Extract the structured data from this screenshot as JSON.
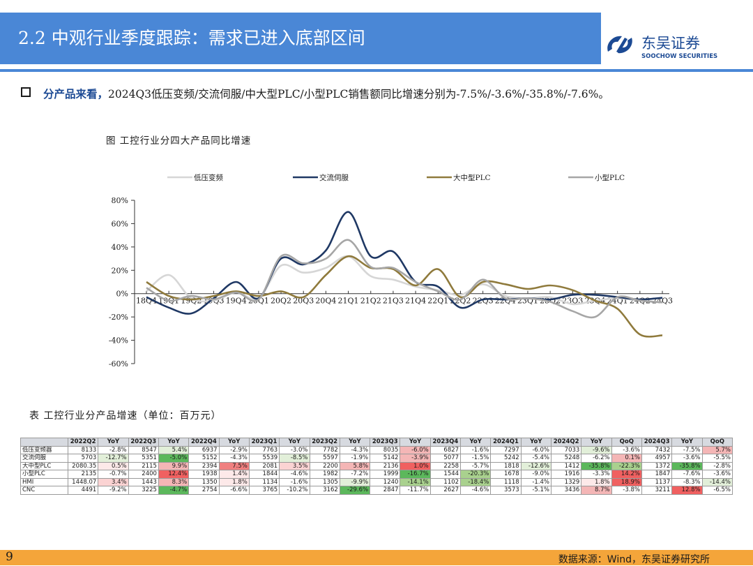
{
  "header": {
    "title": "2.2 中观行业季度跟踪：需求已进入底部区间",
    "logo_cn": "东吴证券",
    "logo_en": "SOOCHOW SECURITIES"
  },
  "bullet": {
    "lead": "分产品来看，",
    "text": "2024Q3低压变频/交流伺服/中大型PLC/小型PLC销售额同比增速分别为-7.5%/-3.6%/-35.8%/-7.6%。"
  },
  "figure_caption": "图 工控行业分四大产品同比增速",
  "chart_data": {
    "type": "line",
    "title": "",
    "xlabel": "",
    "ylabel": "",
    "ylim": [
      -60,
      80
    ],
    "y_ticks": [
      "80%",
      "60%",
      "40%",
      "20%",
      "0%",
      "-20%",
      "-40%",
      "-60%"
    ],
    "categories": [
      "18Q4",
      "19Q1",
      "19Q2",
      "19Q3",
      "19Q4",
      "20Q1",
      "20Q2",
      "20Q3",
      "20Q4",
      "21Q1",
      "21Q2",
      "21Q3",
      "21Q4",
      "22Q1",
      "22Q2",
      "22Q3",
      "22Q4",
      "23Q1",
      "23Q2",
      "23Q3",
      "23Q4",
      "24Q1",
      "24Q2",
      "24Q3"
    ],
    "legend_position": "top",
    "series": [
      {
        "name": "低压变频",
        "color": "#d6d6d6",
        "values": [
          2,
          16,
          -4,
          -6,
          1,
          -4,
          24,
          18,
          22,
          32,
          15,
          12,
          6,
          3,
          -1,
          8,
          -2,
          -4,
          -3,
          -9,
          -6,
          -4,
          -6,
          -7.5
        ]
      },
      {
        "name": "交流伺服",
        "color": "#1f3864",
        "values": [
          -3,
          -12,
          -17,
          -4,
          10,
          -4,
          30,
          25,
          37,
          70,
          32,
          36,
          10,
          6,
          -12,
          -5,
          -5,
          -4,
          -5,
          -1,
          -1,
          -3,
          -5,
          -3.6
        ]
      },
      {
        "name": "大中型PLC",
        "color": "#8f7a3c",
        "values": [
          10,
          -2,
          -5,
          -2,
          2,
          -2,
          2,
          -3,
          16,
          32,
          22,
          21,
          7,
          21,
          -3,
          10,
          8,
          4,
          7,
          3,
          -6,
          -13,
          -35,
          -35.8
        ]
      },
      {
        "name": "小型PLC",
        "color": "#a6a6a6",
        "values": [
          5,
          -6,
          -2,
          -5,
          1,
          -5,
          32,
          26,
          30,
          46,
          23,
          22,
          10,
          2,
          -5,
          12,
          -4,
          -4,
          -7,
          -15,
          -20,
          -3,
          -6,
          -7.6
        ]
      }
    ]
  },
  "table_caption": "表 工控行业分产品增速（单位：百万元）",
  "table": {
    "headers": [
      "",
      "2022Q2",
      "YoY",
      "2022Q3",
      "YoY",
      "2022Q4",
      "YoY",
      "2023Q1",
      "YoY",
      "2023Q2",
      "YoY",
      "2023Q3",
      "YoY",
      "2023Q4",
      "YoY",
      "2024Q1",
      "YoY",
      "2024Q2",
      "YoY",
      "QoQ",
      "2024Q3",
      "YoY",
      "QoQ"
    ],
    "rows": [
      [
        "低压变频器",
        "8133",
        "-2.8%",
        "8547",
        "5.4%",
        "6937",
        "-2.9%",
        "7763",
        "-3.0%",
        "7782",
        "-4.3%",
        "8035",
        "-6.0%",
        "6827",
        "-1.6%",
        "7297",
        "-6.0%",
        "7033",
        "-9.6%",
        "-3.6%",
        "7432",
        "-7.5%",
        "5.7%"
      ],
      [
        "交流伺服",
        "5703",
        "-12.7%",
        "5351",
        "-5.0%",
        "5152",
        "-4.3%",
        "5539",
        "-8.5%",
        "5597",
        "-1.9%",
        "5142",
        "-3.9%",
        "5077",
        "-1.5%",
        "5242",
        "-5.4%",
        "5248",
        "-6.2%",
        "0.1%",
        "4957",
        "-3.6%",
        "-5.5%"
      ],
      [
        "大中型PLC",
        "2080.35",
        "0.5%",
        "2115",
        "9.9%",
        "2394",
        "7.5%",
        "2081",
        "3.5%",
        "2200",
        "5.8%",
        "2136",
        "1.0%",
        "2258",
        "-5.7%",
        "1818",
        "-12.6%",
        "1412",
        "-35.8%",
        "-22.3%",
        "1372",
        "-35.8%",
        "-2.8%"
      ],
      [
        "小型PLC",
        "2135",
        "-0.7%",
        "2400",
        "12.4%",
        "1938",
        "1.4%",
        "1844",
        "-4.6%",
        "1982",
        "-7.2%",
        "1999",
        "-16.7%",
        "1544",
        "-20.3%",
        "1678",
        "-9.0%",
        "1916",
        "-3.3%",
        "14.2%",
        "1847",
        "-7.6%",
        "-3.6%"
      ],
      [
        "HMI",
        "1448.07",
        "3.4%",
        "1443",
        "8.3%",
        "1350",
        "1.8%",
        "1134",
        "-1.6%",
        "1305",
        "-9.9%",
        "1240",
        "-14.1%",
        "1102",
        "-18.4%",
        "1118",
        "-1.4%",
        "1329",
        "1.8%",
        "18.9%",
        "1137",
        "-8.3%",
        "-14.4%"
      ],
      [
        "CNC",
        "4491",
        "-9.2%",
        "3225",
        "-4.7%",
        "2754",
        "-6.6%",
        "3765",
        "-10.2%",
        "3162",
        "-29.6%",
        "2847",
        "-11.7%",
        "2627",
        "-4.6%",
        "3573",
        "-5.1%",
        "3436",
        "8.7%",
        "-3.8%",
        "3211",
        "12.8%",
        "-6.5%"
      ]
    ],
    "highlights": [
      [
        0,
        22,
        "#f4b6b6"
      ],
      [
        0,
        12,
        "#f4b6b6"
      ],
      [
        0,
        4,
        "#e2efd9"
      ],
      [
        0,
        18,
        "#e2efd9"
      ],
      [
        1,
        2,
        "#e2efd9"
      ],
      [
        1,
        4,
        "#5cb85c"
      ],
      [
        1,
        8,
        "#e2efd9"
      ],
      [
        1,
        12,
        "#f4b6b6"
      ],
      [
        1,
        19,
        "#f4b6b6"
      ],
      [
        2,
        2,
        "#fde9e9"
      ],
      [
        2,
        4,
        "#f4b6b6"
      ],
      [
        2,
        6,
        "#f08080"
      ],
      [
        2,
        8,
        "#fbd3d3"
      ],
      [
        2,
        10,
        "#f4b6b6"
      ],
      [
        2,
        12,
        "#f06060"
      ],
      [
        2,
        16,
        "#e2efd9"
      ],
      [
        2,
        18,
        "#5cb85c"
      ],
      [
        2,
        19,
        "#a9d18e"
      ],
      [
        2,
        21,
        "#5cb85c"
      ],
      [
        3,
        4,
        "#f06060"
      ],
      [
        3,
        6,
        "#fde9e9"
      ],
      [
        3,
        12,
        "#5cb85c"
      ],
      [
        3,
        14,
        "#a9d18e"
      ],
      [
        3,
        19,
        "#f06060"
      ],
      [
        4,
        2,
        "#fbd3d3"
      ],
      [
        4,
        4,
        "#f4b6b6"
      ],
      [
        4,
        6,
        "#fde9e9"
      ],
      [
        4,
        10,
        "#e2efd9"
      ],
      [
        4,
        12,
        "#a9d18e"
      ],
      [
        4,
        14,
        "#a9d18e"
      ],
      [
        4,
        18,
        "#fde9e9"
      ],
      [
        4,
        19,
        "#f06060"
      ],
      [
        4,
        22,
        "#e2efd9"
      ],
      [
        5,
        4,
        "#5cb85c"
      ],
      [
        5,
        10,
        "#5cb85c"
      ],
      [
        5,
        18,
        "#f4b6b6"
      ],
      [
        5,
        21,
        "#f06060"
      ]
    ]
  },
  "footer": {
    "page_number": "9",
    "source": "数据来源：Wind，东吴证券研究所"
  }
}
